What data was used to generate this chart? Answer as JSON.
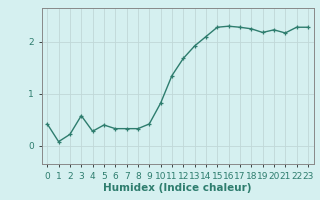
{
  "x": [
    0,
    1,
    2,
    3,
    4,
    5,
    6,
    7,
    8,
    9,
    10,
    11,
    12,
    13,
    14,
    15,
    16,
    17,
    18,
    19,
    20,
    21,
    22,
    23
  ],
  "y": [
    0.42,
    0.08,
    0.22,
    0.58,
    0.28,
    0.4,
    0.33,
    0.33,
    0.33,
    0.42,
    0.82,
    1.35,
    1.68,
    1.92,
    2.1,
    2.28,
    2.3,
    2.28,
    2.25,
    2.18,
    2.23,
    2.17,
    2.28,
    2.28
  ],
  "line_color": "#2e7d6e",
  "marker": "+",
  "marker_size": 3.5,
  "line_width": 1.0,
  "bg_color": "#d5f0f0",
  "grid_color": "#c0d8d8",
  "xlabel": "Humidex (Indice chaleur)",
  "xlabel_fontsize": 7.5,
  "tick_fontsize": 6.5,
  "xlim": [
    -0.5,
    23.5
  ],
  "ylim": [
    -0.35,
    2.65
  ],
  "yticks": [
    0,
    1,
    2
  ],
  "xtick_labels": [
    "0",
    "1",
    "2",
    "3",
    "4",
    "5",
    "6",
    "7",
    "8",
    "9",
    "10",
    "11",
    "12",
    "13",
    "14",
    "15",
    "16",
    "17",
    "18",
    "19",
    "20",
    "21",
    "22",
    "23"
  ],
  "spine_color": "#888888"
}
